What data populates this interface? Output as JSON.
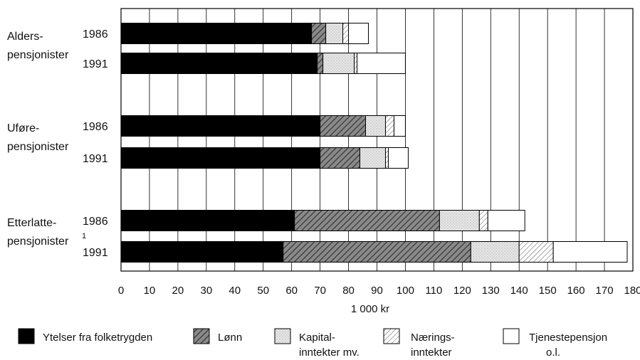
{
  "chart_data": {
    "type": "bar",
    "orientation": "horizontal",
    "stacked": true,
    "title": "",
    "xlabel": "1 000 kr",
    "xlim": [
      0,
      180
    ],
    "x_ticks": [
      "0",
      "10",
      "20",
      "30",
      "40",
      "50",
      "60",
      "70",
      "80",
      "90",
      "100",
      "110",
      "120",
      "130",
      "140",
      "150",
      "160",
      "170",
      "180"
    ],
    "grid": "vertical",
    "legend_position": "bottom",
    "groups": [
      {
        "label": [
          "Alders-",
          "pensjonister"
        ],
        "footnote": ""
      },
      {
        "label": [
          "Uføre-",
          "pensjonister"
        ],
        "footnote": ""
      },
      {
        "label": [
          "Etterlatte-",
          "pensjonister"
        ],
        "footnote": "1"
      }
    ],
    "rows": [
      {
        "group": 0,
        "year": "1986",
        "values": [
          67,
          5,
          6,
          2,
          7
        ]
      },
      {
        "group": 0,
        "year": "1991",
        "values": [
          69,
          2,
          11,
          1,
          17
        ]
      },
      {
        "group": 1,
        "year": "1986",
        "values": [
          70,
          16,
          7,
          3,
          4
        ]
      },
      {
        "group": 1,
        "year": "1991",
        "values": [
          70,
          14,
          9,
          1,
          7
        ]
      },
      {
        "group": 2,
        "year": "1986",
        "values": [
          61,
          51,
          14,
          3,
          13
        ]
      },
      {
        "group": 2,
        "year": "1991",
        "values": [
          57,
          66,
          17,
          12,
          26
        ]
      }
    ],
    "series": [
      {
        "label": [
          "Ytelser fra folketrygden"
        ],
        "color": "#000000",
        "pattern": "solid"
      },
      {
        "label": [
          "Lønn"
        ],
        "color": "#6a6a6a",
        "pattern": "dark-diagonal"
      },
      {
        "label": [
          "Kapital-",
          "inntekter mv."
        ],
        "color": "#dcdcdc",
        "pattern": "light-dots"
      },
      {
        "label": [
          "Nærings-",
          "inntekter"
        ],
        "color": "#ffffff",
        "pattern": "hatch"
      },
      {
        "label": [
          "Tjenestepensjon",
          "o.l."
        ],
        "color": "#ffffff",
        "pattern": "empty"
      }
    ]
  }
}
